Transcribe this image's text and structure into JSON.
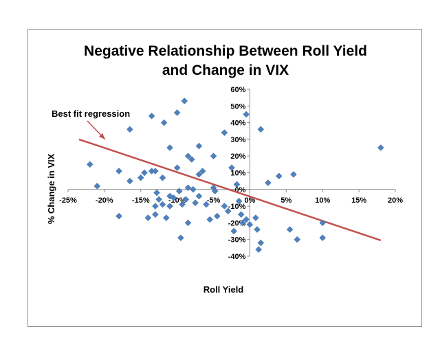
{
  "chart_data": {
    "type": "scatter",
    "title_lines": [
      "Negative Relationship Between Roll Yield",
      "and Change in VIX"
    ],
    "xlabel": "Roll Yield",
    "ylabel": "% Change in VIX",
    "xlim": [
      -0.25,
      0.2
    ],
    "ylim": [
      -0.4,
      0.6
    ],
    "x_ticks": [
      -0.25,
      -0.2,
      -0.15,
      -0.1,
      -0.05,
      0.0,
      0.05,
      0.1,
      0.15,
      0.2
    ],
    "x_tick_labels": [
      "-25%",
      "-20%",
      "-15%",
      "-10%",
      "-5%",
      "0%",
      "5%",
      "10%",
      "15%",
      "20%"
    ],
    "y_ticks": [
      -0.4,
      -0.3,
      -0.2,
      -0.1,
      0.0,
      0.1,
      0.2,
      0.3,
      0.4,
      0.5,
      0.6
    ],
    "y_tick_labels": [
      "-40%",
      "-30%",
      "-20%",
      "-10%",
      "0%",
      "10%",
      "20%",
      "30%",
      "40%",
      "50%",
      "60%"
    ],
    "grid": false,
    "marker_color": "#4f81bd",
    "trendline_color": "#c0504d",
    "trendline": {
      "x": [
        -0.235,
        0.18
      ],
      "y": [
        0.3,
        -0.305
      ]
    },
    "annotation": {
      "text": "Best fit regression"
    },
    "points": [
      {
        "x": -0.22,
        "y": 0.15
      },
      {
        "x": -0.21,
        "y": 0.02
      },
      {
        "x": -0.18,
        "y": 0.11
      },
      {
        "x": -0.18,
        "y": -0.16
      },
      {
        "x": -0.165,
        "y": 0.36
      },
      {
        "x": -0.165,
        "y": 0.05
      },
      {
        "x": -0.15,
        "y": 0.07
      },
      {
        "x": -0.145,
        "y": 0.1
      },
      {
        "x": -0.14,
        "y": -0.17
      },
      {
        "x": -0.135,
        "y": 0.44
      },
      {
        "x": -0.135,
        "y": 0.11
      },
      {
        "x": -0.13,
        "y": 0.11
      },
      {
        "x": -0.13,
        "y": -0.1
      },
      {
        "x": -0.13,
        "y": -0.15
      },
      {
        "x": -0.128,
        "y": -0.02
      },
      {
        "x": -0.125,
        "y": -0.06
      },
      {
        "x": -0.12,
        "y": 0.07
      },
      {
        "x": -0.12,
        "y": -0.09
      },
      {
        "x": -0.118,
        "y": 0.4
      },
      {
        "x": -0.115,
        "y": -0.17
      },
      {
        "x": -0.11,
        "y": 0.25
      },
      {
        "x": -0.11,
        "y": -0.04
      },
      {
        "x": -0.11,
        "y": -0.1
      },
      {
        "x": -0.105,
        "y": -0.05
      },
      {
        "x": -0.1,
        "y": 0.46
      },
      {
        "x": -0.1,
        "y": 0.13
      },
      {
        "x": -0.097,
        "y": -0.01
      },
      {
        "x": -0.095,
        "y": -0.29
      },
      {
        "x": -0.093,
        "y": -0.09
      },
      {
        "x": -0.09,
        "y": 0.53
      },
      {
        "x": -0.088,
        "y": -0.06
      },
      {
        "x": -0.085,
        "y": 0.2
      },
      {
        "x": -0.085,
        "y": 0.01
      },
      {
        "x": -0.085,
        "y": -0.2
      },
      {
        "x": -0.08,
        "y": 0.18
      },
      {
        "x": -0.078,
        "y": 0.0
      },
      {
        "x": -0.075,
        "y": -0.08
      },
      {
        "x": -0.07,
        "y": 0.26
      },
      {
        "x": -0.07,
        "y": 0.09
      },
      {
        "x": -0.07,
        "y": -0.04
      },
      {
        "x": -0.065,
        "y": 0.11
      },
      {
        "x": -0.06,
        "y": -0.09
      },
      {
        "x": -0.055,
        "y": -0.18
      },
      {
        "x": -0.05,
        "y": 0.2
      },
      {
        "x": -0.05,
        "y": 0.01
      },
      {
        "x": -0.048,
        "y": -0.01
      },
      {
        "x": -0.045,
        "y": -0.16
      },
      {
        "x": -0.035,
        "y": 0.34
      },
      {
        "x": -0.035,
        "y": -0.1
      },
      {
        "x": -0.03,
        "y": -0.13
      },
      {
        "x": -0.025,
        "y": 0.13
      },
      {
        "x": -0.022,
        "y": -0.25
      },
      {
        "x": -0.018,
        "y": 0.03
      },
      {
        "x": -0.015,
        "y": -0.07
      },
      {
        "x": -0.012,
        "y": -0.15
      },
      {
        "x": -0.01,
        "y": -0.2
      },
      {
        "x": -0.005,
        "y": 0.45
      },
      {
        "x": -0.005,
        "y": -0.18
      },
      {
        "x": 0.0,
        "y": -0.21
      },
      {
        "x": 0.008,
        "y": -0.17
      },
      {
        "x": 0.01,
        "y": -0.24
      },
      {
        "x": 0.012,
        "y": -0.36
      },
      {
        "x": 0.015,
        "y": 0.36
      },
      {
        "x": 0.015,
        "y": -0.32
      },
      {
        "x": 0.025,
        "y": 0.04
      },
      {
        "x": 0.04,
        "y": 0.08
      },
      {
        "x": 0.055,
        "y": -0.24
      },
      {
        "x": 0.06,
        "y": 0.09
      },
      {
        "x": 0.065,
        "y": -0.3
      },
      {
        "x": 0.1,
        "y": -0.2
      },
      {
        "x": 0.1,
        "y": -0.29
      },
      {
        "x": 0.18,
        "y": 0.25
      }
    ]
  }
}
